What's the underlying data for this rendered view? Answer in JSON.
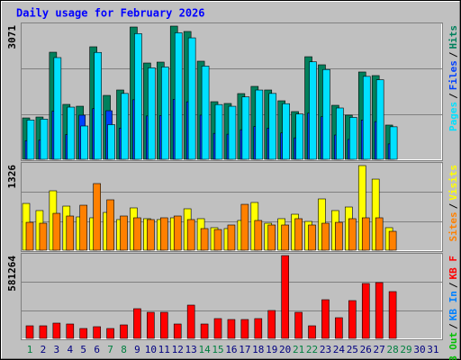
{
  "title": "Daily usage for February 2026",
  "categories": [
    "1",
    "2",
    "3",
    "4",
    "5",
    "6",
    "7",
    "8",
    "9",
    "10",
    "11",
    "12",
    "13",
    "14",
    "15",
    "16",
    "17",
    "18",
    "19",
    "20",
    "21",
    "22",
    "23",
    "24",
    "25",
    "26",
    "27",
    "28",
    "29",
    "30",
    "31"
  ],
  "category_colors": [
    "#008040",
    "#000080",
    "#000080",
    "#000080",
    "#000080",
    "#000080",
    "#008040",
    "#008040",
    "#000080",
    "#000080",
    "#000080",
    "#000080",
    "#000080",
    "#008040",
    "#008040",
    "#000080",
    "#000080",
    "#000080",
    "#000080",
    "#000080",
    "#008040",
    "#008040",
    "#000080",
    "#000080",
    "#000080",
    "#000080",
    "#000080",
    "#008040",
    "#008040",
    "#000080",
    "#000080"
  ],
  "legend_separator": "/",
  "chart_data": [
    {
      "type": "bar",
      "ylim": [
        0,
        3071
      ],
      "yticks": [
        3071
      ],
      "series": [
        {
          "name": "Hits",
          "color": "#00805c",
          "values": [
            954,
            975,
            2469,
            1266,
            1224,
            2594,
            1473,
            1598,
            3050,
            2220,
            2241,
            3071,
            2947,
            2262,
            1328,
            1287,
            1515,
            1681,
            1598,
            1349,
            1100,
            2365,
            2179,
            1245,
            1017,
            2013,
            1930,
            789,
            null,
            null,
            null
          ]
        },
        {
          "name": "Files",
          "color": "#0040ff",
          "values": [
            430,
            440,
            1110,
            570,
            1017,
            1167,
            1120,
            720,
            1373,
            999,
            1008,
            1382,
            1326,
            1018,
            598,
            579,
            682,
            756,
            719,
            607,
            495,
            1064,
            981,
            560,
            458,
            906,
            869,
            355,
            null,
            null,
            null
          ]
        },
        {
          "name": "Pages",
          "color": "#00e0ff",
          "values": [
            906,
            926,
            2345,
            1203,
            768,
            2464,
            799,
            1518,
            2898,
            2109,
            2129,
            2917,
            2800,
            2149,
            1262,
            1223,
            1439,
            1597,
            1518,
            1282,
            1045,
            2247,
            2070,
            1183,
            966,
            1912,
            1834,
            750,
            null,
            null,
            null
          ]
        }
      ]
    },
    {
      "type": "bar",
      "ylim": [
        0,
        1326
      ],
      "yticks": [
        1326
      ],
      "series": [
        {
          "name": "Visits",
          "color": "#ffff00",
          "values": [
            733,
            621,
            931,
            691,
            522,
            508,
            592,
            480,
            663,
            494,
            480,
            508,
            649,
            494,
            353,
            339,
            466,
            748,
            423,
            494,
            564,
            451,
            804,
            621,
            677,
            1326,
            1114,
            353,
            null,
            null,
            null
          ]
        },
        {
          "name": "Sites",
          "color": "#ff8000",
          "values": [
            437,
            423,
            578,
            536,
            705,
            1044,
            790,
            536,
            508,
            480,
            508,
            536,
            480,
            339,
            324,
            395,
            719,
            466,
            395,
            395,
            494,
            395,
            423,
            437,
            494,
            508,
            508,
            296,
            null,
            null,
            null
          ]
        }
      ]
    },
    {
      "type": "bar",
      "ylim": [
        0,
        581264
      ],
      "yticks": [
        581264
      ],
      "series": [
        {
          "name": "KB F",
          "color": "#ff0000",
          "values": [
            88453,
            88453,
            107406,
            101089,
            69498,
            82135,
            69498,
            94771,
            208497,
            183224,
            183224,
            101089,
            233770,
            101089,
            138997,
            132679,
            132679,
            138997,
            195861,
            581264,
            183224,
            88453,
            271677,
            145315,
            265359,
            385403,
            391722,
            328541,
            null,
            null,
            null
          ]
        },
        {
          "name": "KB In",
          "color": "#0080ff"
        },
        {
          "name": "KB Out",
          "color": "#00c000"
        }
      ]
    }
  ]
}
